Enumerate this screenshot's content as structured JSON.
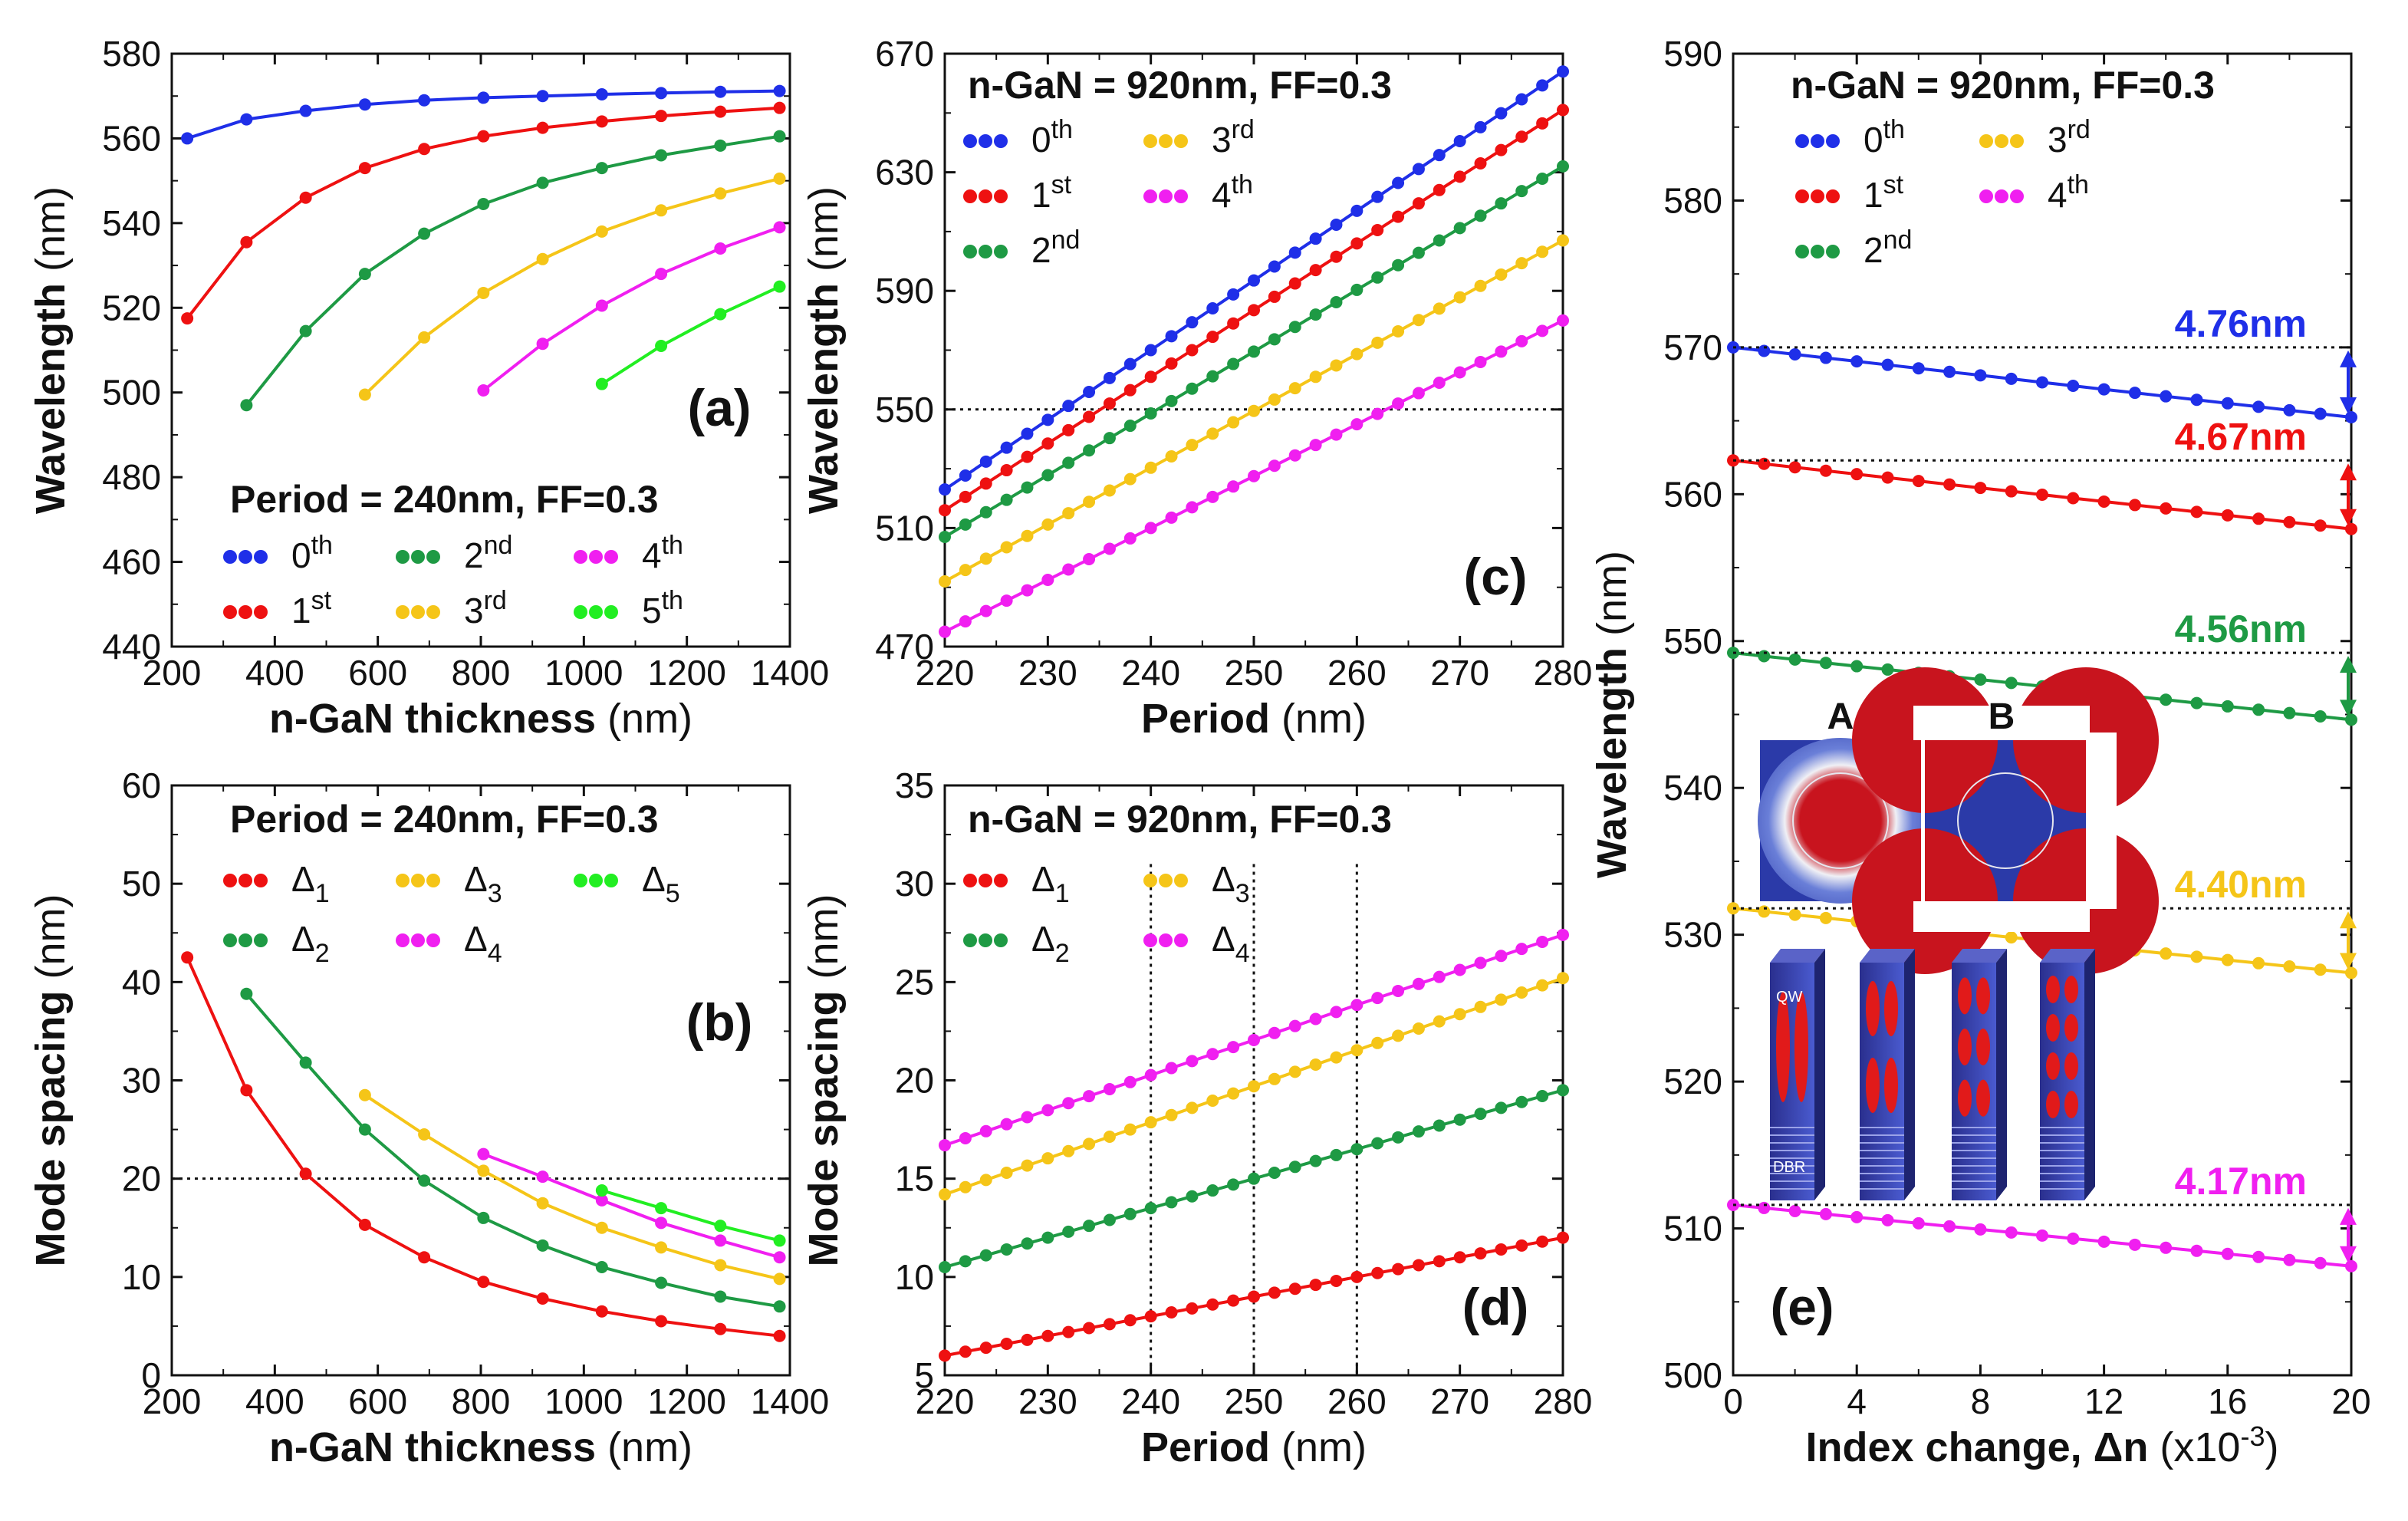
{
  "colors": {
    "blue": "#1f2fe8",
    "red": "#ee1111",
    "green": "#1e9a44",
    "yellow": "#f5c518",
    "magenta": "#f01ff0",
    "lime": "#22ee22",
    "axis": "#111111"
  },
  "chart_data": [
    {
      "id": "a",
      "type": "line",
      "panel_label": "(a)",
      "xlabel_bold": "n-GaN thickness",
      "xlabel_unit": "(nm)",
      "ylabel_bold": "Wavelength",
      "ylabel_unit": "(nm)",
      "xlim": [
        200,
        1400
      ],
      "ylim": [
        440,
        580
      ],
      "xticks": [
        200,
        400,
        600,
        800,
        1000,
        1200,
        1400
      ],
      "yticks": [
        440,
        460,
        480,
        500,
        520,
        540,
        560,
        580
      ],
      "annotation": "Period = 240nm, FF=0.3",
      "series": [
        {
          "name": "0th",
          "base": "0",
          "sup": "th",
          "color": "#1f2fe8",
          "x": [
            230,
            345,
            460,
            575,
            690,
            805,
            920,
            1035,
            1150,
            1265,
            1380
          ],
          "y": [
            560,
            564.5,
            566.5,
            568,
            569,
            569.6,
            570,
            570.4,
            570.7,
            571,
            571.2
          ]
        },
        {
          "name": "1st",
          "base": "1",
          "sup": "st",
          "color": "#ee1111",
          "x": [
            230,
            345,
            460,
            575,
            690,
            805,
            920,
            1035,
            1150,
            1265,
            1380
          ],
          "y": [
            517.5,
            535.5,
            546,
            553,
            557.5,
            560.5,
            562.5,
            564,
            565.3,
            566.3,
            567.2
          ]
        },
        {
          "name": "2nd",
          "base": "2",
          "sup": "nd",
          "color": "#1e9a44",
          "x": [
            345,
            460,
            575,
            690,
            805,
            920,
            1035,
            1150,
            1265,
            1380
          ],
          "y": [
            497,
            514.5,
            528,
            537.5,
            544.5,
            549.5,
            553,
            556,
            558.3,
            560.5
          ]
        },
        {
          "name": "3rd",
          "base": "3",
          "sup": "rd",
          "color": "#f5c518",
          "x": [
            575,
            690,
            805,
            920,
            1035,
            1150,
            1265,
            1380
          ],
          "y": [
            499.5,
            513,
            523.5,
            531.5,
            538,
            543,
            547,
            550.5
          ]
        },
        {
          "name": "4th",
          "base": "4",
          "sup": "th",
          "color": "#f01ff0",
          "x": [
            805,
            920,
            1035,
            1150,
            1265,
            1380
          ],
          "y": [
            500.5,
            511.5,
            520.5,
            528,
            534,
            539
          ]
        },
        {
          "name": "5th",
          "base": "5",
          "sup": "th",
          "color": "#22ee22",
          "x": [
            1035,
            1150,
            1265,
            1380
          ],
          "y": [
            502,
            511,
            518.5,
            525
          ]
        }
      ]
    },
    {
      "id": "b",
      "type": "line",
      "panel_label": "(b)",
      "xlabel_bold": "n-GaN thickness",
      "xlabel_unit": "(nm)",
      "ylabel_bold": "Mode spacing",
      "ylabel_unit": "(nm)",
      "xlim": [
        200,
        1400
      ],
      "ylim": [
        0,
        60
      ],
      "xticks": [
        200,
        400,
        600,
        800,
        1000,
        1200,
        1400
      ],
      "yticks": [
        0,
        10,
        20,
        30,
        40,
        50,
        60
      ],
      "annotation": "Period = 240nm, FF=0.3",
      "ref_line_y": 20,
      "series": [
        {
          "name": "Δ1",
          "base": "Δ",
          "sub": "1",
          "color": "#ee1111",
          "x": [
            230,
            345,
            460,
            575,
            690,
            805,
            920,
            1035,
            1150,
            1265,
            1380
          ],
          "y": [
            42.5,
            29,
            20.5,
            15.3,
            12,
            9.5,
            7.8,
            6.5,
            5.5,
            4.7,
            4
          ]
        },
        {
          "name": "Δ2",
          "base": "Δ",
          "sub": "2",
          "color": "#1e9a44",
          "x": [
            345,
            460,
            575,
            690,
            805,
            920,
            1035,
            1150,
            1265,
            1380
          ],
          "y": [
            38.8,
            31.8,
            25,
            19.8,
            16,
            13.2,
            11,
            9.4,
            8,
            7
          ]
        },
        {
          "name": "Δ3",
          "base": "Δ",
          "sub": "3",
          "color": "#f5c518",
          "x": [
            575,
            690,
            805,
            920,
            1035,
            1150,
            1265,
            1380
          ],
          "y": [
            28.5,
            24.5,
            20.8,
            17.5,
            15,
            13,
            11.2,
            9.8
          ]
        },
        {
          "name": "Δ4",
          "base": "Δ",
          "sub": "4",
          "color": "#f01ff0",
          "x": [
            805,
            920,
            1035,
            1150,
            1265,
            1380
          ],
          "y": [
            22.5,
            20.2,
            17.8,
            15.5,
            13.7,
            12
          ]
        },
        {
          "name": "Δ5",
          "base": "Δ",
          "sub": "5",
          "color": "#22ee22",
          "x": [
            1035,
            1150,
            1265,
            1380
          ],
          "y": [
            18.8,
            17,
            15.2,
            13.7
          ]
        }
      ]
    },
    {
      "id": "c",
      "type": "line",
      "panel_label": "(c)",
      "xlabel_bold": "Period",
      "xlabel_unit": "(nm)",
      "ylabel_bold": "Wavelength",
      "ylabel_unit": "(nm)",
      "xlim": [
        220,
        280
      ],
      "ylim": [
        470,
        670
      ],
      "xticks": [
        220,
        230,
        240,
        250,
        260,
        270,
        280
      ],
      "yticks": [
        470,
        510,
        550,
        590,
        630,
        670
      ],
      "annotation": "n-GaN = 920nm, FF=0.3",
      "ref_line_y": 550,
      "x_start": 220,
      "x_end": 280,
      "x_step": 2,
      "series": [
        {
          "name": "0th",
          "base": "0",
          "sup": "th",
          "color": "#1f2fe8",
          "y_start": 523,
          "y_end": 664
        },
        {
          "name": "1st",
          "base": "1",
          "sup": "st",
          "color": "#ee1111",
          "y_start": 516,
          "y_end": 651
        },
        {
          "name": "2nd",
          "base": "2",
          "sup": "nd",
          "color": "#1e9a44",
          "y_start": 507,
          "y_end": 632
        },
        {
          "name": "3rd",
          "base": "3",
          "sup": "rd",
          "color": "#f5c518",
          "y_start": 492,
          "y_end": 607
        },
        {
          "name": "4th",
          "base": "4",
          "sup": "th",
          "color": "#f01ff0",
          "y_start": 475,
          "y_end": 580
        }
      ]
    },
    {
      "id": "d",
      "type": "line",
      "panel_label": "(d)",
      "xlabel_bold": "Period",
      "xlabel_unit": "(nm)",
      "ylabel_bold": "Mode spacing",
      "ylabel_unit": "(nm)",
      "xlim": [
        220,
        280
      ],
      "ylim": [
        5,
        35
      ],
      "xticks": [
        220,
        230,
        240,
        250,
        260,
        270,
        280
      ],
      "yticks": [
        5,
        10,
        15,
        20,
        25,
        30,
        35
      ],
      "annotation": "n-GaN = 920nm, FF=0.3",
      "ref_lines_x": [
        240,
        250,
        260
      ],
      "x_start": 220,
      "x_end": 280,
      "x_step": 2,
      "series": [
        {
          "name": "Δ1",
          "base": "Δ",
          "sub": "1",
          "color": "#ee1111",
          "y_start": 6,
          "y_end": 12
        },
        {
          "name": "Δ2",
          "base": "Δ",
          "sub": "2",
          "color": "#1e9a44",
          "y_start": 10.5,
          "y_end": 19.5
        },
        {
          "name": "Δ3",
          "base": "Δ",
          "sub": "3",
          "color": "#f5c518",
          "y_start": 14.2,
          "y_end": 25.2
        },
        {
          "name": "Δ4",
          "base": "Δ",
          "sub": "4",
          "color": "#f01ff0",
          "y_start": 16.7,
          "y_end": 27.4
        }
      ]
    },
    {
      "id": "e",
      "type": "line",
      "panel_label": "(e)",
      "xlabel_bold": "Index change, Δn",
      "xlabel_unit": "(x10",
      "xlabel_exp": "-3",
      "xlabel_close": ")",
      "ylabel_bold": "Wavelength",
      "ylabel_unit": "(nm)",
      "xlim": [
        0,
        20
      ],
      "ylim": [
        500,
        590
      ],
      "xticks": [
        0,
        4,
        8,
        12,
        16,
        20
      ],
      "yticks": [
        500,
        510,
        520,
        530,
        540,
        550,
        560,
        570,
        580,
        590
      ],
      "annotation": "n-GaN = 920nm, FF=0.3",
      "x_start": 0,
      "x_end": 20,
      "x_step": 1,
      "series": [
        {
          "name": "0th",
          "base": "0",
          "sup": "th",
          "color": "#1f2fe8",
          "y_start": 570.0,
          "y_end": 565.24,
          "shift": "4.76nm"
        },
        {
          "name": "1st",
          "base": "1",
          "sup": "st",
          "color": "#ee1111",
          "y_start": 562.3,
          "y_end": 557.63,
          "shift": "4.67nm"
        },
        {
          "name": "2nd",
          "base": "2",
          "sup": "nd",
          "color": "#1e9a44",
          "y_start": 549.2,
          "y_end": 544.64,
          "shift": "4.56nm"
        },
        {
          "name": "3rd",
          "base": "3",
          "sup": "rd",
          "color": "#f5c518",
          "y_start": 531.8,
          "y_end": 527.4,
          "shift": "4.40nm"
        },
        {
          "name": "4th",
          "base": "4",
          "sup": "th",
          "color": "#f01ff0",
          "y_start": 511.6,
          "y_end": 507.43,
          "shift": "4.17nm"
        }
      ],
      "inset_top_labels": [
        "A",
        "B"
      ],
      "inset_bottom_labels": [
        "QW",
        "DBR"
      ]
    }
  ]
}
